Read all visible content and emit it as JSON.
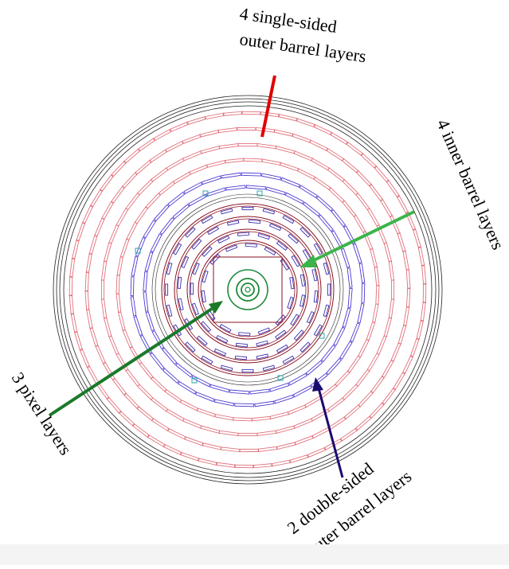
{
  "labels": {
    "outer_single": {
      "line1": "4 single-sided",
      "line2": "outer barrel layers"
    },
    "inner_barrel": {
      "text": "4 inner barrel layers"
    },
    "pixel": {
      "text": "3 pixel layers"
    },
    "outer_double": {
      "line1": "2 double-sided",
      "line2": "outer barrel layers"
    }
  },
  "colors": {
    "outer_single_arrow": "#e00000",
    "inner_barrel_arrow": "#3cb44b",
    "pixel_arrow": "#1a7a2a",
    "outer_double_arrow": "#1a0a6e",
    "outer_module": "#e0707a",
    "double_module": "#4b3bd0",
    "inner_module": "#3b2fb0",
    "inner_ring": "#8a1020",
    "pixel": "#1f8a3a",
    "frame": "#222222",
    "cyan_support": "#2aa8a8"
  }
}
